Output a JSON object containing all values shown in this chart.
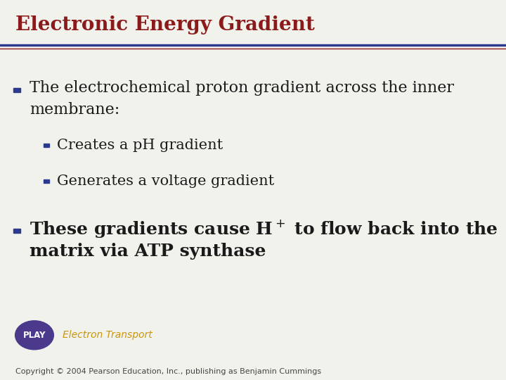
{
  "title": "Electronic Energy Gradient",
  "title_color": "#8B1A1A",
  "title_fontsize": 20,
  "bg_color": "#F2F2ED",
  "line_color": "#2B3A8C",
  "line2_color": "#8B1A1A",
  "bullet_color": "#2B3A8C",
  "body_color": "#1A1A1A",
  "bullet1_text_line1": "The electrochemical proton gradient across the inner",
  "bullet1_text_line2": "membrane:",
  "sub_bullet1": "Creates a pH gradient",
  "sub_bullet2": "Generates a voltage gradient",
  "bullet2_text_line1": "These gradients cause H$^+$ to flow back into the",
  "bullet2_text_line2": "matrix via ATP synthase",
  "play_label": "PLAY",
  "play_text": "Electron Transport",
  "play_bg": "#4B3A8C",
  "play_label_color": "#FFFFFF",
  "play_text_color": "#C8960C",
  "copyright": "Copyright © 2004 Pearson Education, Inc., publishing as Benjamin Cummings",
  "body_fontsize": 16,
  "sub_fontsize": 15,
  "copyright_fontsize": 8
}
